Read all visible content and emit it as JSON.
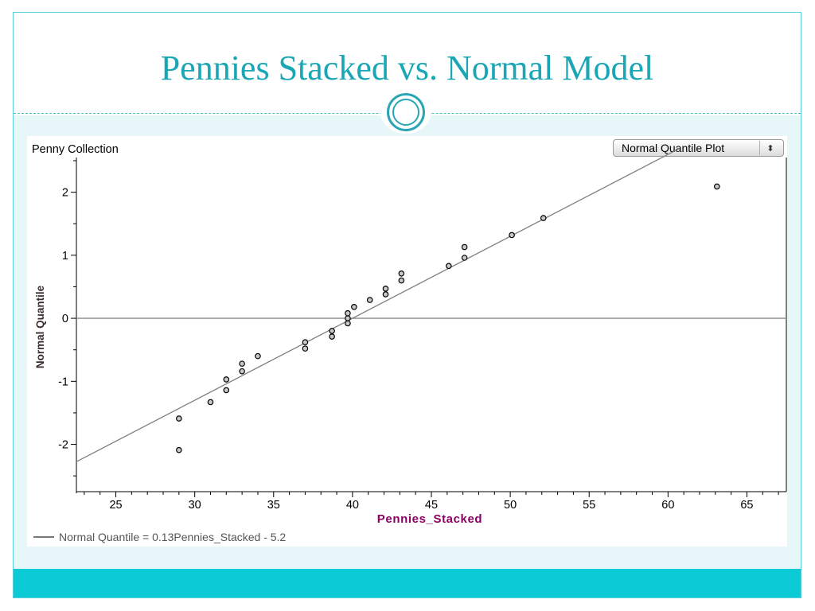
{
  "slide": {
    "title": "Pennies Stacked vs. Normal Model"
  },
  "panel": {
    "collection_label": "Penny Collection",
    "plot_type": "Normal Quantile Plot",
    "equation": "Normal Quantile = 0.13Pennies_Stacked - 5.2"
  },
  "colors": {
    "accent": "#1aa6b4",
    "footer": "#0ccad6",
    "content_bg": "#e6f6f9",
    "xlabel": "#8b0062"
  },
  "chart_data": {
    "type": "scatter",
    "title": "",
    "xlabel": "Pennies_Stacked",
    "ylabel": "Normal Quantile",
    "xlim": [
      22.5,
      67.5
    ],
    "ylim": [
      -2.75,
      2.55
    ],
    "x_ticks": [
      25,
      30,
      35,
      40,
      45,
      50,
      55,
      60,
      65
    ],
    "y_ticks": [
      -2,
      -1,
      0,
      1,
      2
    ],
    "points": [
      {
        "x": 29,
        "y": -2.09
      },
      {
        "x": 29,
        "y": -1.59
      },
      {
        "x": 31,
        "y": -1.33
      },
      {
        "x": 32,
        "y": -1.14
      },
      {
        "x": 32,
        "y": -0.97
      },
      {
        "x": 33,
        "y": -0.84
      },
      {
        "x": 33,
        "y": -0.72
      },
      {
        "x": 34,
        "y": -0.6
      },
      {
        "x": 37,
        "y": -0.48
      },
      {
        "x": 37,
        "y": -0.38
      },
      {
        "x": 38.7,
        "y": -0.29
      },
      {
        "x": 38.7,
        "y": -0.2
      },
      {
        "x": 39.7,
        "y": -0.08
      },
      {
        "x": 39.7,
        "y": 0.0
      },
      {
        "x": 39.7,
        "y": 0.08
      },
      {
        "x": 40.1,
        "y": 0.18
      },
      {
        "x": 41.1,
        "y": 0.29
      },
      {
        "x": 42.1,
        "y": 0.38
      },
      {
        "x": 42.1,
        "y": 0.47
      },
      {
        "x": 43.1,
        "y": 0.6
      },
      {
        "x": 43.1,
        "y": 0.71
      },
      {
        "x": 46.1,
        "y": 0.83
      },
      {
        "x": 47.1,
        "y": 0.96
      },
      {
        "x": 47.1,
        "y": 1.13
      },
      {
        "x": 50.1,
        "y": 1.32
      },
      {
        "x": 52.1,
        "y": 1.59
      },
      {
        "x": 63.1,
        "y": 2.09
      }
    ],
    "fit_line": {
      "slope": 0.13,
      "intercept": -5.2,
      "label": "Normal Quantile = 0.13Pennies_Stacked - 5.2"
    },
    "reference_line_y": 0,
    "grid": false
  }
}
